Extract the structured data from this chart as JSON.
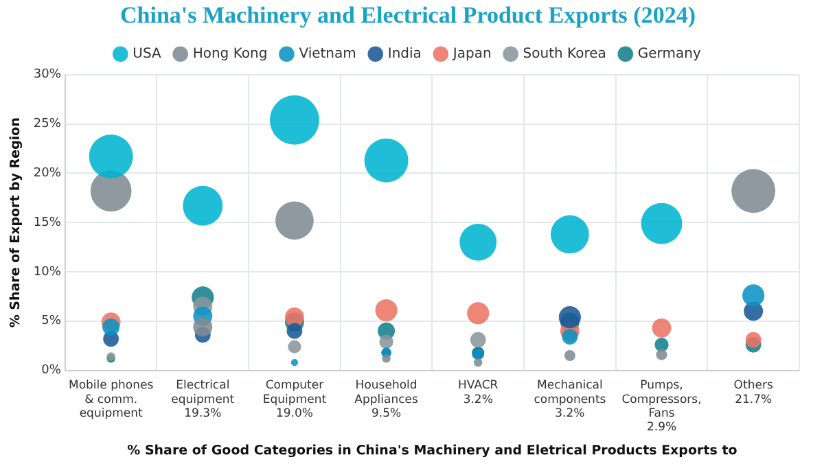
{
  "chart_data": {
    "type": "bubble",
    "title": "China's Machinery and Electrical Product Exports (2024)",
    "xlabel": "% Share of Good Categories in China's Machinery and Eletrical Products Exports to",
    "ylabel": "% Share of Export by Region",
    "categories": [
      "Mobile phones\n& comm.\nequipment",
      "Electrical\nequipment\n19.3%",
      "Computer\nEquipment\n19.0%",
      "Household\nAppliances\n9.5%",
      "HVACR\n3.2%",
      "Mechanical\ncomponents\n3.2%",
      "Pumps,\nCompressors,\nFans\n2.9%",
      "Others\n21.7%"
    ],
    "series": [
      {
        "name": "USA",
        "color": "#00b4d0",
        "values": [
          21.7,
          16.7,
          25.4,
          21.3,
          13.0,
          13.8,
          14.9,
          null
        ],
        "sizes": [
          0.79,
          0.65,
          1,
          0.79,
          0.56,
          0.6,
          0.69,
          null
        ]
      },
      {
        "name": "Hong Kong",
        "color": "#7f8c93",
        "values": [
          18.2,
          4.4,
          15.2,
          1.2,
          0.8,
          1.5,
          1.6,
          18.2
        ],
        "sizes": [
          0.69,
          0.15,
          0.6,
          0.03,
          0.03,
          0.05,
          0.05,
          0.79
        ]
      },
      {
        "name": "Vietnam",
        "color": "#0a93c4",
        "values": [
          4.4,
          5.5,
          0.8,
          1.8,
          1.7,
          3.4,
          null,
          7.6
        ],
        "sizes": [
          0.12,
          0.15,
          0.02,
          0.04,
          0.05,
          0.1,
          null,
          0.2
        ]
      },
      {
        "name": "India",
        "color": "#1a5a96",
        "values": [
          3.2,
          3.6,
          4.0,
          1.8,
          1.7,
          5.4,
          null,
          6.0
        ],
        "sizes": [
          0.1,
          0.1,
          0.1,
          0.04,
          0.06,
          0.2,
          null,
          0.15
        ]
      },
      {
        "name": "Japan",
        "color": "#ec7466",
        "values": [
          4.9,
          null,
          5.4,
          6.1,
          5.8,
          4.0,
          4.3,
          3.1
        ],
        "sizes": [
          0.15,
          null,
          0.15,
          0.2,
          0.2,
          0.15,
          0.15,
          0.1
        ]
      },
      {
        "name": "South Korea",
        "color": "#8a969c",
        "values": [
          1.4,
          6.5,
          2.4,
          2.9,
          3.1,
          3.7,
          null,
          null
        ],
        "sizes": [
          0.03,
          0.15,
          0.07,
          0.08,
          0.1,
          0.1,
          null,
          null
        ]
      },
      {
        "name": "Germany",
        "color": "#157f8c",
        "values": [
          1.2,
          7.4,
          4.9,
          4.0,
          1.8,
          4.9,
          2.6,
          2.6
        ],
        "sizes": [
          0.03,
          0.2,
          0.15,
          0.12,
          0.06,
          0.15,
          0.08,
          0.1
        ]
      }
    ],
    "ylim": [
      0,
      30
    ],
    "yticks": [
      {
        "value": 0,
        "label": "0%"
      },
      {
        "value": 5,
        "label": "5%"
      },
      {
        "value": 10,
        "label": "10%"
      },
      {
        "value": 15,
        "label": "15%"
      },
      {
        "value": 20,
        "label": "20%"
      },
      {
        "value": 25,
        "label": "25%"
      },
      {
        "value": 30,
        "label": "30%"
      }
    ],
    "grid": true,
    "legend": "top"
  }
}
